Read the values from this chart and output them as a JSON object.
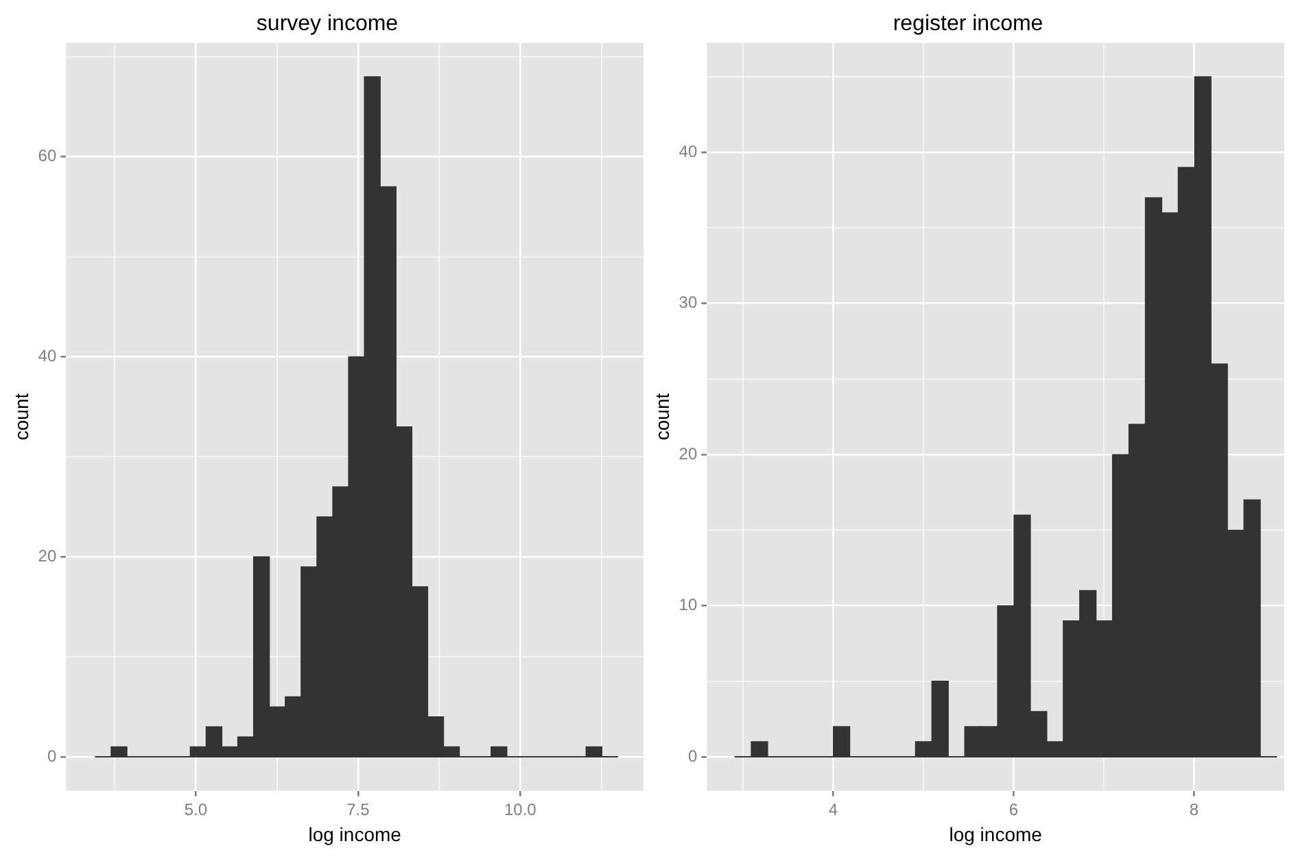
{
  "chart_data": [
    {
      "type": "histogram",
      "title": "survey income",
      "xlabel": "log income",
      "ylabel": "count",
      "color": "#333333",
      "grid": true,
      "bins": [
        3.45,
        3.694,
        3.938,
        4.182,
        4.426,
        4.67,
        4.914,
        5.158,
        5.402,
        5.646,
        5.89,
        6.134,
        6.378,
        6.622,
        6.866,
        7.11,
        7.354,
        7.598,
        7.842,
        8.086,
        8.33,
        8.574,
        8.818,
        9.062,
        9.306,
        9.55,
        9.794,
        10.038,
        10.282,
        10.526,
        10.77,
        11.014,
        11.258,
        11.502
      ],
      "values": [
        0,
        1,
        0,
        0,
        0,
        0,
        1,
        3,
        1,
        2,
        20,
        5,
        6,
        19,
        24,
        27,
        40,
        68,
        57,
        33,
        17,
        4,
        1,
        0,
        0,
        1,
        0,
        0,
        0,
        0,
        0,
        1,
        0
      ],
      "xlim": [
        3.0,
        11.9
      ],
      "ylim": [
        -3.4,
        71.4
      ],
      "xticks": [
        {
          "value": 3.75,
          "label": null
        },
        {
          "value": 5,
          "label": "5.0"
        },
        {
          "value": 6.25,
          "label": null
        },
        {
          "value": 7.5,
          "label": "7.5"
        },
        {
          "value": 8.75,
          "label": null
        },
        {
          "value": 10,
          "label": "10.0"
        },
        {
          "value": 11.25,
          "label": null
        }
      ],
      "yticks": [
        0,
        {
          "value": 10,
          "label": null
        },
        20,
        {
          "value": 30,
          "label": null
        },
        40,
        {
          "value": 50,
          "label": null
        },
        60,
        {
          "value": 70,
          "label": null
        }
      ]
    },
    {
      "type": "histogram",
      "title": "register income",
      "xlabel": "log income",
      "ylabel": "count",
      "color": "#333333",
      "grid": true,
      "bins": [
        2.91,
        3.092,
        3.274,
        3.456,
        3.638,
        3.82,
        4.002,
        4.184,
        4.366,
        4.548,
        4.73,
        4.912,
        5.094,
        5.276,
        5.458,
        5.64,
        5.822,
        6.004,
        6.186,
        6.368,
        6.55,
        6.732,
        6.914,
        7.096,
        7.278,
        7.46,
        7.642,
        7.824,
        8.006,
        8.188,
        8.37,
        8.552,
        8.734,
        8.916
      ],
      "values": [
        0,
        1,
        0,
        0,
        0,
        0,
        2,
        0,
        0,
        0,
        0,
        1,
        5,
        0,
        2,
        2,
        10,
        16,
        3,
        1,
        9,
        11,
        9,
        20,
        22,
        37,
        36,
        39,
        45,
        26,
        15,
        17,
        0
      ],
      "xlim": [
        2.6,
        9.0
      ],
      "ylim": [
        -2.25,
        47.25
      ],
      "xticks": [
        {
          "value": 3,
          "label": null
        },
        4,
        {
          "value": 5,
          "label": null
        },
        6,
        {
          "value": 7,
          "label": null
        },
        8
      ],
      "yticks": [
        0,
        {
          "value": 5,
          "label": null
        },
        10,
        {
          "value": 15,
          "label": null
        },
        20,
        {
          "value": 25,
          "label": null
        },
        30,
        {
          "value": 35,
          "label": null
        },
        40,
        {
          "value": 45,
          "label": null
        }
      ]
    }
  ]
}
